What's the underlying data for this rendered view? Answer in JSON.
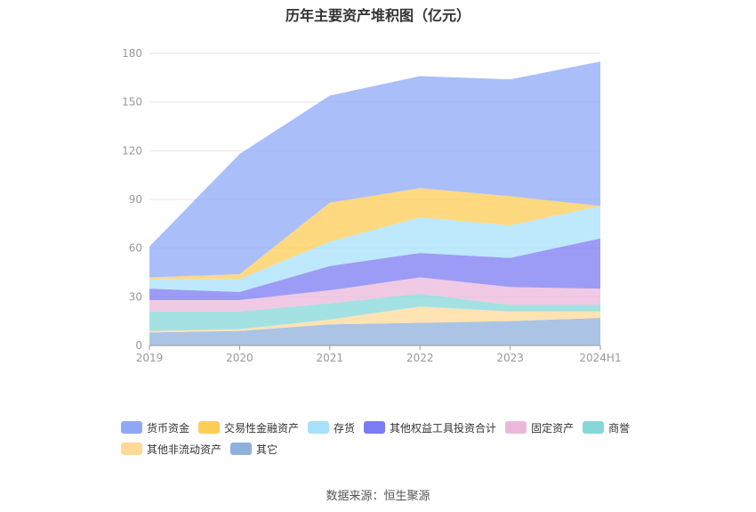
{
  "chart_data": {
    "type": "area",
    "stacked": true,
    "title": "历年主要资产堆积图（亿元）",
    "categories": [
      "2019",
      "2020",
      "2021",
      "2022",
      "2023",
      "2024H1"
    ],
    "ylim": [
      0,
      180
    ],
    "yticks": [
      0,
      30,
      60,
      90,
      120,
      150,
      180
    ],
    "grid": true,
    "legend_position": "bottom",
    "series": [
      {
        "name": "其它",
        "color": "#8fb0dd",
        "values": [
          8,
          9,
          13,
          14,
          15,
          17
        ]
      },
      {
        "name": "其他非流动资产",
        "color": "#ffd998",
        "values": [
          1,
          1,
          3,
          10,
          6,
          4
        ]
      },
      {
        "name": "商誉",
        "color": "#86d7d8",
        "values": [
          12,
          11,
          10,
          8,
          4,
          4
        ]
      },
      {
        "name": "固定资产",
        "color": "#ebb8dc",
        "values": [
          7,
          7,
          8,
          10,
          11,
          10
        ]
      },
      {
        "name": "其他权益工具投资合计",
        "color": "#7b7bf3",
        "values": [
          7,
          5,
          15,
          15,
          18,
          31
        ]
      },
      {
        "name": "存货",
        "color": "#a8e0fa",
        "values": [
          6,
          8,
          15,
          22,
          20,
          20
        ]
      },
      {
        "name": "交易性金融资产",
        "color": "#ffcc55",
        "values": [
          1,
          3,
          24,
          18,
          18,
          0
        ]
      },
      {
        "name": "货币资金",
        "color": "#8ea8f8",
        "values": [
          19,
          74,
          66,
          69,
          72,
          89
        ]
      }
    ],
    "legend_order": [
      "货币资金",
      "交易性金融资产",
      "存货",
      "其他权益工具投资合计",
      "固定资产",
      "商誉",
      "其他非流动资产",
      "其它"
    ]
  },
  "source": "数据来源：恒生聚源"
}
